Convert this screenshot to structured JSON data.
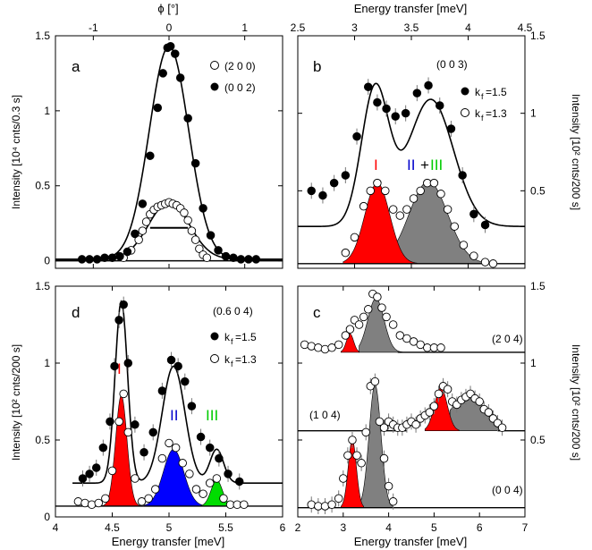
{
  "chart_data": [
    {
      "panel": "a",
      "type": "scatter",
      "title": "a",
      "xlabel": "ϕ [°]",
      "ylabel": "Intensity [10⁴ cnts/0.3 s]",
      "xlim": [
        -1.5,
        1.5
      ],
      "ylim": [
        -0.05,
        1.5
      ],
      "xticks": [
        -1,
        0,
        1
      ],
      "yticks": [
        0,
        0.5,
        1,
        1.5
      ],
      "legend": [
        "(2 0 0)",
        "(0 0 2)"
      ],
      "series": [
        {
          "name": "(0 0 2)",
          "marker": "filled",
          "x": [
            -1.15,
            -1.05,
            -0.95,
            -0.85,
            -0.75,
            -0.65,
            -0.55,
            -0.45,
            -0.35,
            -0.25,
            -0.15,
            -0.08,
            -0.02,
            0.02,
            0.08,
            0.15,
            0.25,
            0.35,
            0.45,
            0.55,
            0.65,
            0.75,
            0.85,
            0.95,
            1.05,
            1.15
          ],
          "y": [
            0.01,
            0.01,
            0.01,
            0.02,
            0.02,
            0.03,
            0.06,
            0.18,
            0.38,
            0.7,
            1.02,
            1.25,
            1.42,
            1.43,
            1.38,
            1.22,
            0.95,
            0.65,
            0.35,
            0.17,
            0.07,
            0.03,
            0.02,
            0.01,
            0.01,
            0.01
          ]
        },
        {
          "name": "(2 0 0)",
          "marker": "open",
          "x": [
            -0.6,
            -0.5,
            -0.4,
            -0.35,
            -0.3,
            -0.25,
            -0.2,
            -0.15,
            -0.1,
            -0.05,
            0,
            0.05,
            0.1,
            0.15,
            0.2,
            0.25,
            0.3,
            0.35,
            0.4,
            0.45,
            0.5
          ],
          "y": [
            0.02,
            0.07,
            0.14,
            0.2,
            0.26,
            0.31,
            0.34,
            0.36,
            0.37,
            0.38,
            0.39,
            0.38,
            0.37,
            0.35,
            0.32,
            0.27,
            0.2,
            0.14,
            0.08,
            0.04,
            0.02
          ]
        }
      ],
      "resolution_bar": {
        "x": [
          -0.25,
          0.25
        ],
        "y": 0.22
      }
    },
    {
      "panel": "b",
      "type": "scatter",
      "title": "b",
      "label": "(0 0 3)",
      "xlabel": "Energy transfer [meV]",
      "ylabel": "Intensity [10² cnts/200 s]",
      "xlim": [
        2.5,
        4.5
      ],
      "ylim": [
        0,
        1.5
      ],
      "xticks": [
        2.5,
        3,
        3.5,
        4,
        4.5
      ],
      "yticks": [
        0.5,
        1,
        1.5
      ],
      "legend": [
        "kf=1.5",
        "kf=1.3"
      ],
      "annotations": [
        "I",
        "II",
        "+",
        "III"
      ],
      "series": [
        {
          "name": "kf=1.5",
          "marker": "filled",
          "x": [
            2.62,
            2.72,
            2.82,
            2.92,
            3.02,
            3.12,
            3.2,
            3.28,
            3.36,
            3.45,
            3.55,
            3.65,
            3.75,
            3.85,
            3.95,
            4.05,
            4.15
          ],
          "y": [
            0.5,
            0.47,
            0.55,
            0.6,
            0.85,
            1.17,
            1.07,
            1.03,
            0.98,
            1.0,
            1.13,
            1.18,
            1.05,
            0.9,
            0.6,
            0.35,
            0.28
          ]
        },
        {
          "name": "kf=1.3",
          "marker": "open",
          "x": [
            2.92,
            3.0,
            3.08,
            3.14,
            3.2,
            3.27,
            3.34,
            3.4,
            3.46,
            3.52,
            3.58,
            3.64,
            3.7,
            3.76,
            3.82,
            3.88,
            3.96,
            4.05,
            4.15,
            4.22
          ],
          "y": [
            0.1,
            0.2,
            0.4,
            0.5,
            0.55,
            0.5,
            0.38,
            0.34,
            0.38,
            0.45,
            0.5,
            0.55,
            0.55,
            0.48,
            0.38,
            0.27,
            0.15,
            0.08,
            0.04,
            0.03
          ]
        }
      ]
    },
    {
      "panel": "d",
      "type": "scatter",
      "title": "d",
      "label": "(0.6 0 4)",
      "xlabel": "Energy transfer [meV]",
      "ylabel": "Intensity [10² cnts/200 s]",
      "xlim": [
        4,
        6
      ],
      "ylim": [
        0,
        1.5
      ],
      "xticks": [
        4,
        4.5,
        5,
        5.5,
        6
      ],
      "yticks": [
        0,
        0.5,
        1,
        1.5
      ],
      "legend": [
        "kf=1.5",
        "kf=1.3"
      ],
      "annotations": [
        "I",
        "II",
        "III"
      ],
      "series": [
        {
          "name": "kf=1.5",
          "marker": "filled",
          "x": [
            4.24,
            4.3,
            4.36,
            4.42,
            4.48,
            4.52,
            4.56,
            4.6,
            4.64,
            4.7,
            4.78,
            4.86,
            4.94,
            5.02,
            5.08,
            5.14,
            5.2,
            5.28,
            5.36,
            5.44,
            5.52,
            5.62
          ],
          "y": [
            0.25,
            0.28,
            0.32,
            0.45,
            0.62,
            0.98,
            1.28,
            1.38,
            1.0,
            0.6,
            0.42,
            0.55,
            0.82,
            1.02,
            0.98,
            0.88,
            0.72,
            0.52,
            0.45,
            0.38,
            0.28,
            0.23
          ]
        },
        {
          "name": "kf=1.3",
          "marker": "open",
          "x": [
            4.2,
            4.26,
            4.32,
            4.38,
            4.44,
            4.5,
            4.56,
            4.6,
            4.64,
            4.7,
            4.76,
            4.82,
            4.88,
            4.94,
            5.0,
            5.06,
            5.12,
            5.18,
            5.24,
            5.3,
            5.36,
            5.42,
            5.48,
            5.54,
            5.6,
            5.66
          ],
          "y": [
            0.1,
            0.09,
            0.08,
            0.09,
            0.12,
            0.3,
            0.62,
            0.8,
            0.55,
            0.25,
            0.1,
            0.12,
            0.18,
            0.38,
            0.48,
            0.45,
            0.35,
            0.28,
            0.18,
            0.15,
            0.22,
            0.25,
            0.12,
            0.08,
            0.08,
            0.08
          ]
        }
      ]
    },
    {
      "panel": "c",
      "type": "scatter",
      "title": "c",
      "xlabel": "Energy transfer [meV]",
      "ylabel": "Intensity [10² cnts/200 s]",
      "xlim": [
        2,
        7
      ],
      "ylim": [
        0,
        1.5
      ],
      "xticks": [
        2,
        3,
        4,
        5,
        6,
        7
      ],
      "yticks": [
        0.5,
        1,
        1.5
      ],
      "series": [
        {
          "name": "(2 0 4)",
          "marker": "open",
          "baseline": 1.07,
          "x": [
            2.15,
            2.3,
            2.45,
            2.6,
            2.75,
            2.9,
            3.05,
            3.15,
            3.25,
            3.35,
            3.45,
            3.55,
            3.65,
            3.75,
            3.85,
            3.95,
            4.1,
            4.25,
            4.4,
            4.55,
            4.7,
            4.85,
            5.0,
            5.15
          ],
          "y": [
            1.12,
            1.11,
            1.1,
            1.09,
            1.1,
            1.12,
            1.18,
            1.22,
            1.28,
            1.25,
            1.3,
            1.35,
            1.45,
            1.43,
            1.36,
            1.3,
            1.25,
            1.18,
            1.16,
            1.14,
            1.12,
            1.1,
            1.1,
            1.1
          ]
        },
        {
          "name": "(1 0 4)",
          "marker": "open",
          "baseline": 0.56,
          "x": [
            3.9,
            4.0,
            4.1,
            4.2,
            4.3,
            4.4,
            4.5,
            4.6,
            4.7,
            4.8,
            4.9,
            5.0,
            5.1,
            5.2,
            5.3,
            5.4,
            5.5,
            5.6,
            5.7,
            5.8,
            5.9,
            6.0,
            6.1,
            6.2,
            6.3,
            6.4,
            6.5
          ],
          "y": [
            0.58,
            0.62,
            0.6,
            0.58,
            0.58,
            0.6,
            0.62,
            0.6,
            0.64,
            0.66,
            0.68,
            0.72,
            0.8,
            0.85,
            0.83,
            0.75,
            0.73,
            0.76,
            0.78,
            0.8,
            0.77,
            0.75,
            0.7,
            0.68,
            0.64,
            0.61,
            0.58
          ]
        },
        {
          "name": "(0 0 4)",
          "marker": "open",
          "baseline": 0.06,
          "x": [
            2.3,
            2.45,
            2.6,
            2.75,
            2.9,
            3.0,
            3.1,
            3.2,
            3.3,
            3.4,
            3.5,
            3.6,
            3.7,
            3.8,
            3.9,
            4.0,
            4.1
          ],
          "y": [
            0.08,
            0.07,
            0.07,
            0.08,
            0.12,
            0.25,
            0.4,
            0.5,
            0.4,
            0.35,
            0.55,
            0.85,
            0.88,
            0.62,
            0.38,
            0.2,
            0.1
          ]
        }
      ],
      "labels": [
        "(2 0 4)",
        "(1 0 4)",
        "(0 0 4)"
      ]
    }
  ],
  "colors": {
    "peak_I": "#ff0000",
    "peak_II": "#0000ff",
    "peak_III": "#00dd00",
    "peak_gray": "#808080",
    "line": "#000000",
    "label_I": "#ff0000",
    "label_II": "#0000cc",
    "label_III": "#00cc00"
  },
  "texts": {
    "top_left_axis": "ϕ [°]",
    "top_right_axis": "Energy transfer [meV]",
    "bottom_left_axis": "Energy transfer [meV]",
    "bottom_right_axis": "Energy transfer [meV]",
    "ylabel_a": "Intensity [10⁴ cnts/0.3 s]",
    "ylabel_b": "Intensity [10² cnts/200 s]",
    "ylabel_d": "Intensity [10² cnts/200 s]",
    "ylabel_c": "Intensity [10² cnts/200 s]",
    "legend_a1": "(2 0 0)",
    "legend_a2": "(0 0 2)",
    "legend_b_hkl": "(0 0 3)",
    "legend_kf15": "k",
    "legend_kf15_sub": "f",
    "legend_kf15_val": "=1.5",
    "legend_kf13_val": "=1.3",
    "legend_d_hkl": "(0.6 0 4)",
    "panel_a": "a",
    "panel_b": "b",
    "panel_c": "c",
    "panel_d": "d",
    "ann_I": "I",
    "ann_II": "II",
    "ann_plus": "+",
    "ann_III": "III",
    "label_204": "(2 0 4)",
    "label_104": "(1 0 4)",
    "label_004": "(0 0 4)"
  }
}
